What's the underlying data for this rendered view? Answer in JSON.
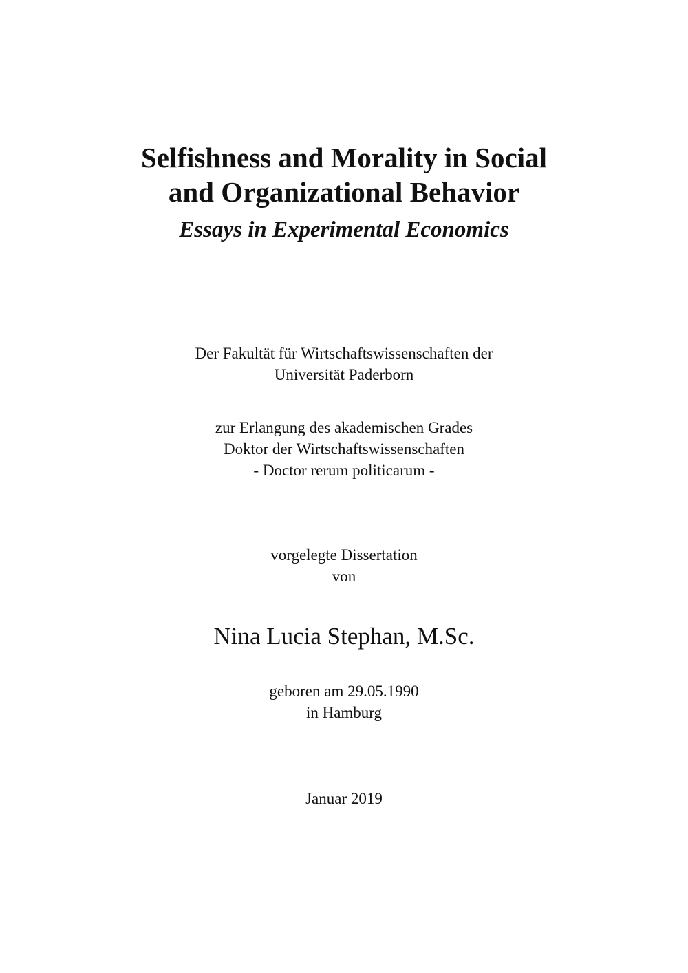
{
  "title_line1": "Selfishness and Morality in Social",
  "title_line2": "and Organizational Behavior",
  "subtitle": "Essays in Experimental Economics",
  "faculty_line1": "Der Fakultät für Wirtschaftswissenschaften der",
  "faculty_line2": "Universität Paderborn",
  "degree_line1": "zur Erlangung des akademischen Grades",
  "degree_line2": "Doktor der Wirtschaftswissenschaften",
  "degree_line3": "- Doctor rerum politicarum -",
  "submitted_line1": "vorgelegte Dissertation",
  "submitted_line2": "von",
  "author": "Nina Lucia Stephan, M.Sc.",
  "birth_line1": "geboren am 29.05.1990",
  "birth_line2": "in Hamburg",
  "date": "Januar 2019"
}
